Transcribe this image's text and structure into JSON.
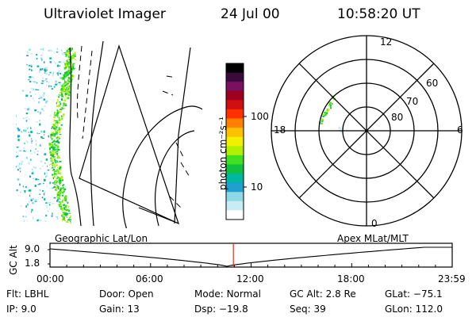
{
  "header": {
    "title": "Ultraviolet Imager",
    "date": "24 Jul 00",
    "time": "10:58:20 UT"
  },
  "colorbar": {
    "label": "photon cm⁻²s⁻¹",
    "ticks": [
      "100",
      "10"
    ],
    "colors": [
      "#000000",
      "#3a0a3a",
      "#7a1060",
      "#a00020",
      "#d01010",
      "#ff3000",
      "#ff8000",
      "#ffc000",
      "#f0f000",
      "#b0f000",
      "#40e020",
      "#10c040",
      "#00b8a0",
      "#20a0d0",
      "#8fd8e8",
      "#c8ecf4",
      "#ffffff"
    ]
  },
  "polar_plot": {
    "labels": {
      "top": "12",
      "right": "6",
      "bottom": "0",
      "left": "18"
    },
    "latitude_labels": [
      "60",
      "70",
      "80"
    ]
  },
  "timeline": {
    "left_title": "Geographic Lat/Lon",
    "right_title": "Apex MLat/MLT",
    "y_axis_label": "GC Alt",
    "y_ticks": [
      "9.0",
      "1.8"
    ],
    "x_ticks": [
      "00:00",
      "06:00",
      "12:00",
      "18:00",
      "23:59"
    ],
    "current_time_fraction": 0.456,
    "marker_color": "#e03020"
  },
  "status": {
    "row1": [
      {
        "label": "Flt:",
        "value": "LBHL"
      },
      {
        "label": "Door:",
        "value": "Open"
      },
      {
        "label": "Mode:",
        "value": "Normal"
      },
      {
        "label": "GC Alt:",
        "value": "2.8 Re"
      },
      {
        "label": "GLat:",
        "value": "−75.1"
      }
    ],
    "row2": [
      {
        "label": "IP:",
        "value": "9.0"
      },
      {
        "label": "Gain:",
        "value": "13"
      },
      {
        "label": "Dsp:",
        "value": "−19.8"
      },
      {
        "label": "Seq:",
        "value": "39"
      },
      {
        "label": "GLon:",
        "value": "112.0"
      }
    ]
  }
}
